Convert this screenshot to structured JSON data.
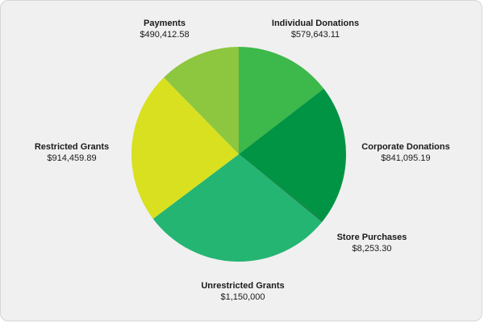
{
  "chart_data": {
    "type": "pie",
    "slices": [
      {
        "name": "Individual Donations",
        "value_label": "$579,643.11",
        "value": 579643.11,
        "color": "#3db84a"
      },
      {
        "name": "Corporate Donations",
        "value_label": "$841,095.19",
        "value": 841095.19,
        "color": "#009444"
      },
      {
        "name": "Store Purchases",
        "value_label": "$8,253.30",
        "value": 8253.3,
        "color": "#0d7a3a"
      },
      {
        "name": "Unrestricted Grants",
        "value_label": "$1,150,000",
        "value": 1150000,
        "color": "#24b573"
      },
      {
        "name": "Restricted Grants",
        "value_label": "$914,459.89",
        "value": 914459.89,
        "color": "#d8e020"
      },
      {
        "name": "Payments",
        "value_label": "$490,412.58",
        "value": 490412.58,
        "color": "#8dc63f"
      }
    ],
    "start_angle": "12 o'clock",
    "direction": "clockwise",
    "legend": "none",
    "labels": "outside slices"
  }
}
